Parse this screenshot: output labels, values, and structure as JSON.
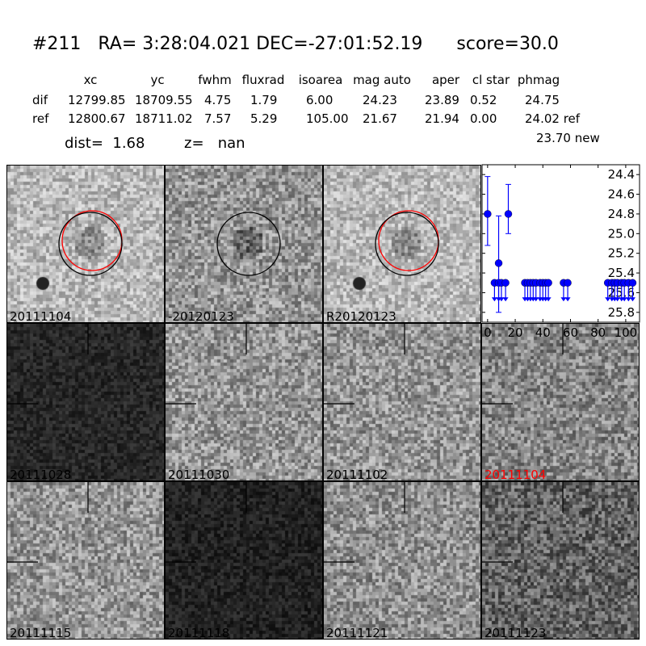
{
  "header": {
    "title": "#211   RA= 3:28:04.021 DEC=-27:01:52.19      score=30.0",
    "columns": [
      "xc",
      "yc",
      "fwhm",
      "fluxrad",
      "isoarea",
      "mag auto",
      "aper",
      "cl star",
      "phmag"
    ],
    "rows": [
      {
        "label": "dif",
        "values": [
          "12799.85",
          "18709.55",
          "4.75",
          "1.79",
          "6.00",
          "24.23",
          "23.89",
          "0.52",
          "24.75"
        ]
      },
      {
        "label": "ref",
        "values": [
          "12800.67",
          "18711.02",
          "7.57",
          "5.29",
          "105.00",
          "21.67",
          "21.94",
          "0.00",
          "24.02 ref"
        ]
      }
    ],
    "new_mag": "23.70 new",
    "dist": "dist=  1.68",
    "z": "z=   nan"
  },
  "panels": [
    {
      "label": "20111104",
      "brightness": 185,
      "circles": [
        "red",
        "black"
      ]
    },
    {
      "label": "-20120123",
      "brightness": 150,
      "circles": [
        "black"
      ]
    },
    {
      "label": "R20120123",
      "brightness": 185,
      "circles": [
        "red",
        "black"
      ]
    },
    {
      "label": "20111028",
      "brightness": 40,
      "crosshair": true
    },
    {
      "label": "20111030",
      "brightness": 150,
      "crosshair": true
    },
    {
      "label": "20111102",
      "brightness": 150,
      "crosshair": true
    },
    {
      "label": "20111104",
      "brightness": 135,
      "crosshair": true,
      "label_color": "#ff0000"
    },
    {
      "label": "20111115",
      "brightness": 150,
      "crosshair": true
    },
    {
      "label": "20111118",
      "brightness": 35,
      "crosshair": true
    },
    {
      "label": "20111121",
      "brightness": 145,
      "crosshair": true
    },
    {
      "label": "20111123",
      "brightness": 100,
      "crosshair": true
    }
  ],
  "chart_data": {
    "type": "scatter",
    "xlim": [
      -4,
      110
    ],
    "ylim": [
      25.9,
      24.3
    ],
    "y_inverted": true,
    "xticks": [
      "0",
      "20",
      "40",
      "60",
      "80",
      "100"
    ],
    "yticks": [
      "24.4",
      "24.6",
      "24.8",
      "25.0",
      "25.2",
      "25.4",
      "25.6",
      "25.8"
    ],
    "color": "#0000ff",
    "detections": [
      {
        "x": 0,
        "y": 24.8,
        "ylo": 24.42,
        "yhi": 25.12
      },
      {
        "x": 8,
        "y": 25.3,
        "ylo": 24.82,
        "yhi": 25.8
      },
      {
        "x": 15,
        "y": 24.8,
        "ylo": 24.5,
        "yhi": 25.0
      }
    ],
    "upper_limits": {
      "y": 25.5,
      "x": [
        5,
        8,
        10,
        13,
        27,
        29,
        31,
        33,
        35,
        38,
        40,
        42,
        44,
        55,
        58,
        87,
        90,
        92,
        94,
        97,
        99,
        102,
        105
      ]
    }
  }
}
